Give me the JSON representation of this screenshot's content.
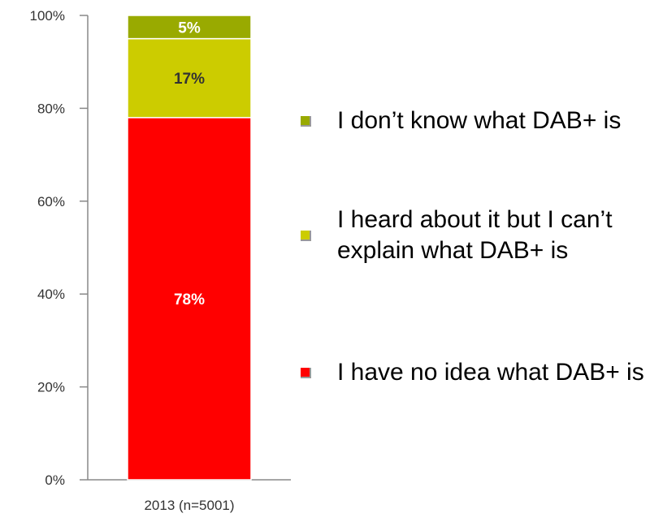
{
  "chart_data": {
    "type": "bar",
    "stacked": true,
    "categories": [
      "2013 (n=5001)"
    ],
    "series": [
      {
        "name": "I have no idea what DAB+ is",
        "values": [
          78
        ],
        "label": "78%",
        "color": "#ff0000",
        "label_color": "#ffffff"
      },
      {
        "name": "I heard about it but I can’t explain what DAB+ is",
        "values": [
          17
        ],
        "label": "17%",
        "color": "#cccc00",
        "label_color": "#333333"
      },
      {
        "name": "I don’t know what DAB+ is",
        "values": [
          5
        ],
        "label": "5%",
        "color": "#99aa00",
        "label_color": "#ffffff"
      }
    ],
    "yticks": [
      "0%",
      "20%",
      "40%",
      "60%",
      "80%",
      "100%"
    ],
    "ylim": [
      0,
      100
    ],
    "legend_position": "right"
  },
  "legend": [
    {
      "label": "I don’t know what DAB+ is",
      "color": "#99aa00"
    },
    {
      "label": "I heard about it but I can’t explain what DAB+ is",
      "color": "#cccc00"
    },
    {
      "label": "I have no idea what DAB+ is",
      "color": "#ff0000"
    }
  ]
}
